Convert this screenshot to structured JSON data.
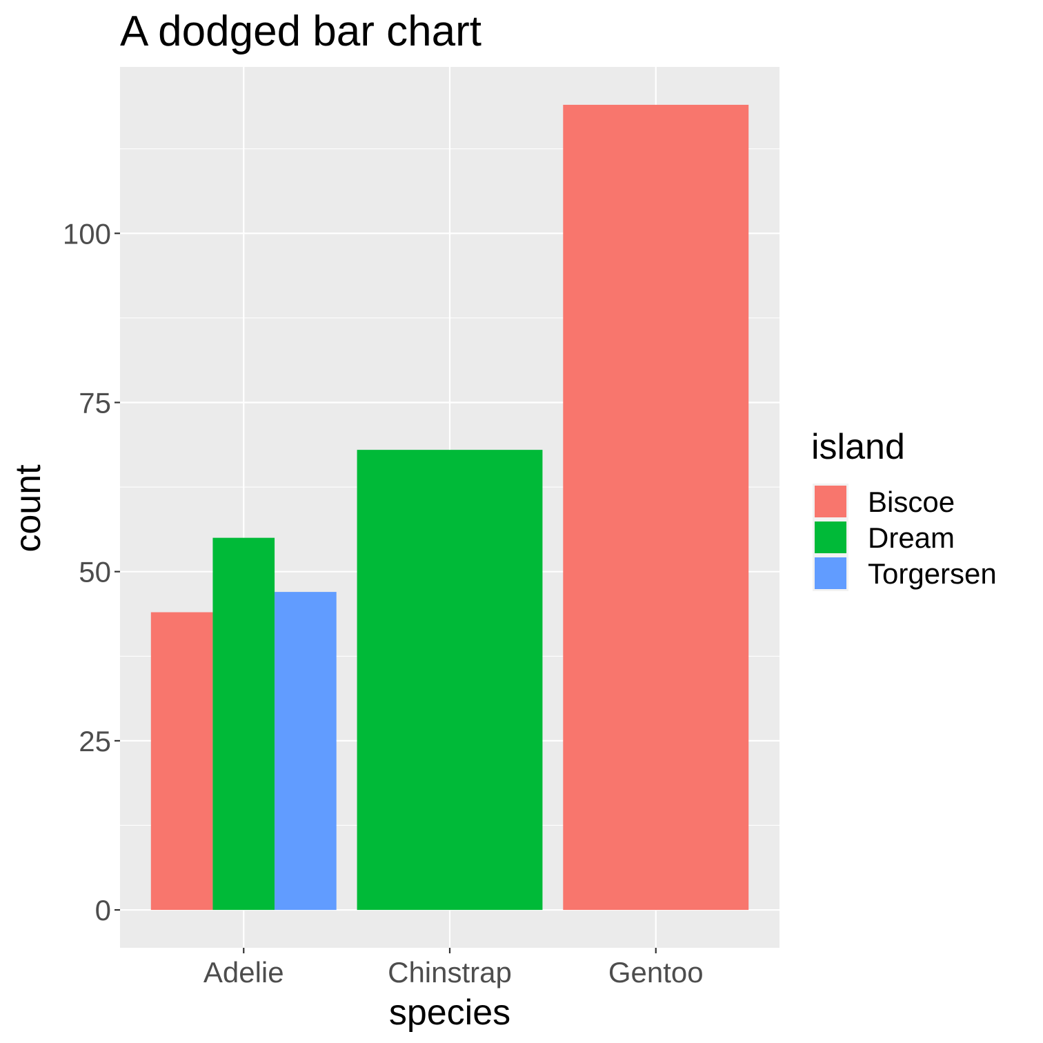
{
  "chart_data": {
    "type": "bar",
    "mode": "dodged",
    "title": "A dodged bar chart",
    "xlabel": "species",
    "ylabel": "count",
    "categories": [
      "Adelie",
      "Chinstrap",
      "Gentoo"
    ],
    "ylim": [
      -5.6,
      124.6
    ],
    "yticks": [
      0,
      25,
      50,
      75,
      100
    ],
    "ytick_labels": [
      "0",
      "25",
      "50",
      "75",
      "100"
    ],
    "grid": true,
    "legend": {
      "title": "island",
      "position": "right",
      "entries": [
        {
          "label": "Biscoe",
          "color": "#F8766D"
        },
        {
          "label": "Dream",
          "color": "#00BA38"
        },
        {
          "label": "Torgersen",
          "color": "#619CFF"
        }
      ]
    },
    "series": [
      {
        "name": "Biscoe",
        "color": "#F8766D",
        "values": [
          44,
          null,
          119
        ]
      },
      {
        "name": "Dream",
        "color": "#00BA38",
        "values": [
          55,
          68,
          null
        ]
      },
      {
        "name": "Torgersen",
        "color": "#619CFF",
        "values": [
          47,
          null,
          null
        ]
      }
    ],
    "colors": {
      "panel_background": "#EBEBEB",
      "grid_line": "#FFFFFF",
      "tick_text": "#4D4D4D",
      "tick_mark": "#333333"
    }
  }
}
